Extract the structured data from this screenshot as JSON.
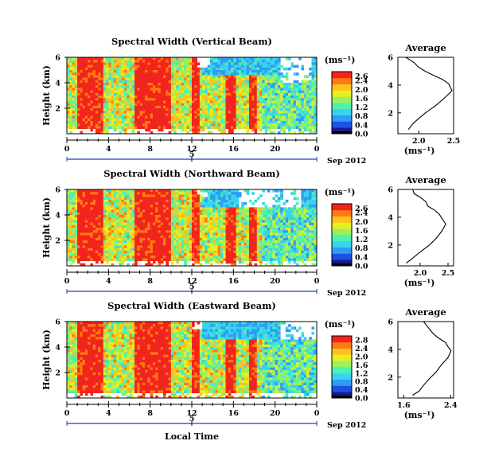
{
  "chart_data": [
    {
      "type": "heatmap",
      "title": "Spectral Width (Vertical Beam)",
      "ylabel": "Height (km)",
      "y_ticks": [
        "6",
        "4",
        "2"
      ],
      "ylim": [
        0,
        6
      ],
      "x_ticks": [
        "0",
        "4",
        "8",
        "12",
        "16",
        "20",
        "0"
      ],
      "xlim": [
        0,
        24
      ],
      "date_ticks": [
        "5"
      ],
      "date_label": "Sep 2012",
      "colorbar": {
        "unit": "(ms⁻¹)",
        "ticks": [
          "2.6",
          "2.4",
          "2.0",
          "1.6",
          "1.2",
          "0.8",
          "0.4",
          "0.0"
        ],
        "range": [
          0,
          2.8
        ]
      },
      "data_gaps": [
        {
          "x": [
            20.5,
            23.5
          ],
          "y": [
            4.0,
            6.0
          ]
        },
        {
          "x": [
            12.5,
            13.8
          ],
          "y": [
            5.3,
            6.0
          ]
        }
      ],
      "profile": {
        "title": "Average",
        "xlabel": "(ms⁻¹)",
        "x_ticks": [
          "2.0",
          "2.5"
        ],
        "xlim": [
          1.7,
          2.5
        ],
        "y_ticks": [
          "6",
          "4",
          "2"
        ],
        "ylim": [
          0.5,
          6
        ],
        "x": [
          1.85,
          1.9,
          2.0,
          2.1,
          2.25,
          2.35,
          2.48,
          2.42,
          2.35,
          2.2,
          2.1,
          2.0,
          1.95,
          1.87,
          1.8
        ],
        "y": [
          0.8,
          1.2,
          1.6,
          2.0,
          2.5,
          3.0,
          3.6,
          4.1,
          4.4,
          4.7,
          5.0,
          5.3,
          5.6,
          5.85,
          6.0
        ]
      }
    },
    {
      "type": "heatmap",
      "title": "Spectral Width (Northward Beam)",
      "ylabel": "Height (km)",
      "y_ticks": [
        "6",
        "4",
        "2"
      ],
      "ylim": [
        0,
        6
      ],
      "x_ticks": [
        "0",
        "4",
        "8",
        "12",
        "16",
        "20",
        "0"
      ],
      "xlim": [
        0,
        24
      ],
      "date_ticks": [
        "5"
      ],
      "date_label": "Sep 2012",
      "colorbar": {
        "unit": "(ms⁻¹)",
        "ticks": [
          "2.6",
          "2.4",
          "2.0",
          "1.6",
          "1.2",
          "0.8",
          "0.4",
          "0.0"
        ],
        "range": [
          0,
          2.8
        ]
      },
      "data_gaps": [
        {
          "x": [
            16.5,
            22.5
          ],
          "y": [
            4.7,
            6.0
          ]
        },
        {
          "x": [
            12.5,
            13.5
          ],
          "y": [
            5.4,
            6.0
          ]
        }
      ],
      "profile": {
        "title": "Average",
        "xlabel": "(ms⁻¹)",
        "x_ticks": [
          "2.0",
          "2.5"
        ],
        "xlim": [
          1.6,
          2.6
        ],
        "y_ticks": [
          "6",
          "4",
          "2"
        ],
        "ylim": [
          0.5,
          6
        ],
        "x": [
          1.75,
          1.85,
          2.0,
          2.15,
          2.3,
          2.4,
          2.45,
          2.4,
          2.35,
          2.25,
          2.15,
          2.1,
          2.0,
          1.9,
          1.85
        ],
        "y": [
          0.7,
          1.0,
          1.5,
          2.0,
          2.5,
          3.0,
          3.5,
          3.9,
          4.2,
          4.5,
          4.8,
          5.1,
          5.4,
          5.7,
          6.0
        ]
      }
    },
    {
      "type": "heatmap",
      "title": "Spectral Width (Eastward Beam)",
      "ylabel": "Height (km)",
      "y_ticks": [
        "6",
        "4",
        "2"
      ],
      "ylim": [
        0,
        6
      ],
      "x_ticks": [
        "0",
        "4",
        "8",
        "12",
        "16",
        "20",
        "0"
      ],
      "xlim": [
        0,
        24
      ],
      "date_ticks": [
        "5"
      ],
      "date_label": "Sep 2012",
      "xlabel": "Local Time",
      "colorbar": {
        "unit": "(ms⁻¹)",
        "ticks": [
          "2.8",
          "2.4",
          "2.0",
          "1.6",
          "1.2",
          "0.8",
          "0.4",
          "0.0"
        ],
        "range": [
          0,
          3.0
        ]
      },
      "data_gaps": [
        {
          "x": [
            20.5,
            24.0
          ],
          "y": [
            4.6,
            6.0
          ]
        },
        {
          "x": [
            12.0,
            13.0
          ],
          "y": [
            5.5,
            6.0
          ]
        }
      ],
      "profile": {
        "title": "Average",
        "xlabel": "(ms⁻¹)",
        "x_ticks": [
          "1.6",
          "2.4"
        ],
        "xlim": [
          1.5,
          2.45
        ],
        "y_ticks": [
          "6",
          "4",
          "2"
        ],
        "ylim": [
          0.5,
          6
        ],
        "x": [
          1.75,
          1.85,
          1.95,
          2.05,
          2.15,
          2.25,
          2.35,
          2.4,
          2.35,
          2.3,
          2.2,
          2.1,
          2.05,
          2.0,
          1.95
        ],
        "y": [
          0.7,
          1.0,
          1.4,
          1.9,
          2.4,
          2.9,
          3.4,
          3.9,
          4.2,
          4.5,
          4.8,
          5.1,
          5.4,
          5.7,
          6.0
        ]
      }
    }
  ],
  "colors": {
    "colormap": [
      "#1a1a8c",
      "#2050e0",
      "#2f9cf5",
      "#38d3f0",
      "#4ff0b0",
      "#9af060",
      "#e6f020",
      "#ffc21a",
      "#ff7a12",
      "#f2251e"
    ],
    "axis": "#000000",
    "date_axis": "#1f3cc8"
  }
}
